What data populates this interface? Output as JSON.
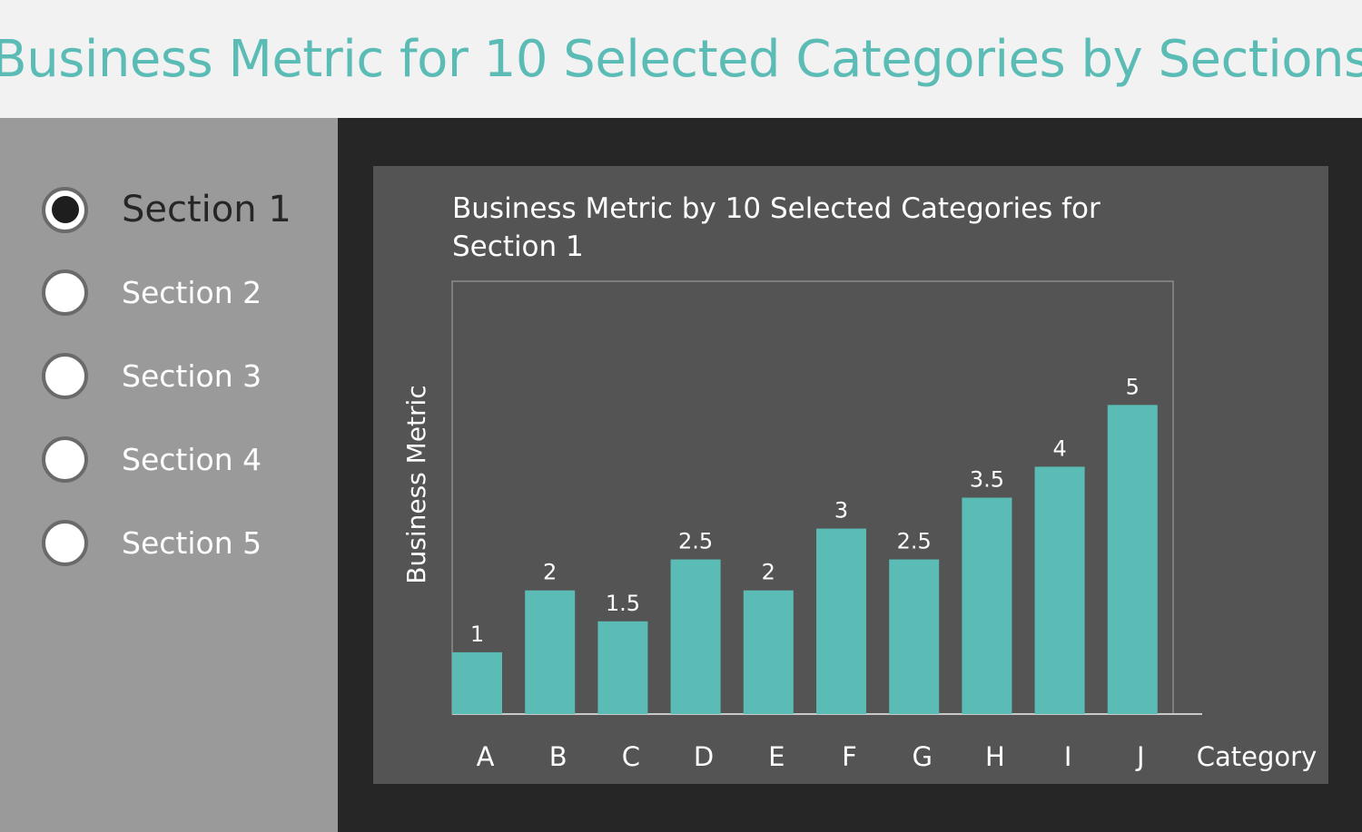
{
  "header": {
    "title": "Business Metric for 10 Selected Categories by Sections"
  },
  "sidebar": {
    "items": [
      {
        "label": "Section 1",
        "selected": true
      },
      {
        "label": "Section 2",
        "selected": false
      },
      {
        "label": "Section 3",
        "selected": false
      },
      {
        "label": "Section 4",
        "selected": false
      },
      {
        "label": "Section 5",
        "selected": false
      }
    ]
  },
  "colors": {
    "accent": "#5bbcb6",
    "panel": "#545454",
    "background": "#262626",
    "sidebar": "#9a9a9a"
  },
  "chart_data": {
    "type": "bar",
    "title": "Business Metric by 10 Selected Categories for Section 1",
    "title_lines": [
      "Business Metric by 10 Selected Categories for",
      "Section 1"
    ],
    "xlabel": "Category",
    "ylabel": "Business Metric",
    "categories": [
      "A",
      "B",
      "C",
      "D",
      "E",
      "F",
      "G",
      "H",
      "I",
      "J"
    ],
    "values": [
      1,
      2,
      1.5,
      2.5,
      2,
      3,
      2.5,
      3.5,
      4,
      5
    ],
    "data_labels": [
      "1",
      "2",
      "1.5",
      "2.5",
      "2",
      "3",
      "2.5",
      "3.5",
      "4",
      "5"
    ],
    "ylim": [
      0,
      7
    ],
    "grid": false,
    "legend": "none",
    "bar_color": "#5bbcb6"
  }
}
